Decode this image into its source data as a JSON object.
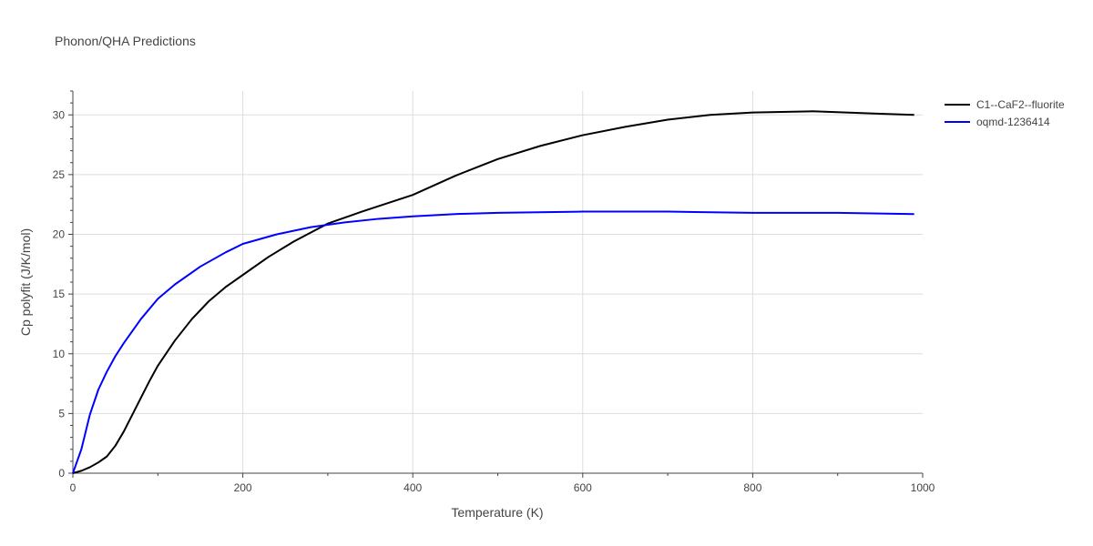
{
  "chart_data": {
    "type": "line",
    "title": "Phonon/QHA Predictions",
    "xlabel": "Temperature (K)",
    "ylabel": "Cp polyfit (J/K/mol)",
    "xlim": [
      0,
      1000
    ],
    "ylim": [
      0,
      32
    ],
    "xticks": [
      0,
      200,
      400,
      600,
      800,
      1000
    ],
    "yticks": [
      0,
      5,
      10,
      15,
      20,
      25,
      30
    ],
    "grid": true,
    "legend_position": "top-right",
    "series": [
      {
        "name": "C1--CaF2--fluorite",
        "color": "#000000",
        "x": [
          0,
          10,
          20,
          30,
          40,
          50,
          60,
          70,
          80,
          90,
          100,
          120,
          140,
          160,
          180,
          200,
          230,
          260,
          300,
          340,
          400,
          450,
          500,
          550,
          600,
          650,
          700,
          750,
          800,
          870,
          950,
          990
        ],
        "y": [
          0,
          0.2,
          0.5,
          0.9,
          1.4,
          2.3,
          3.5,
          4.9,
          6.3,
          7.7,
          9.0,
          11.1,
          12.9,
          14.4,
          15.6,
          16.6,
          18.1,
          19.4,
          20.9,
          21.9,
          23.3,
          24.9,
          26.3,
          27.4,
          28.3,
          29.0,
          29.6,
          30.0,
          30.2,
          30.3,
          30.1,
          30.0
        ]
      },
      {
        "name": "oqmd-1236414",
        "color": "#0000ff",
        "x": [
          0,
          10,
          20,
          30,
          40,
          50,
          60,
          80,
          100,
          120,
          150,
          180,
          200,
          240,
          280,
          320,
          360,
          400,
          450,
          500,
          600,
          700,
          800,
          900,
          990
        ],
        "y": [
          0,
          2.0,
          4.9,
          7.0,
          8.5,
          9.8,
          10.9,
          12.9,
          14.6,
          15.8,
          17.3,
          18.5,
          19.2,
          20.0,
          20.6,
          21.0,
          21.3,
          21.5,
          21.7,
          21.8,
          21.9,
          21.9,
          21.8,
          21.8,
          21.7
        ]
      }
    ]
  }
}
